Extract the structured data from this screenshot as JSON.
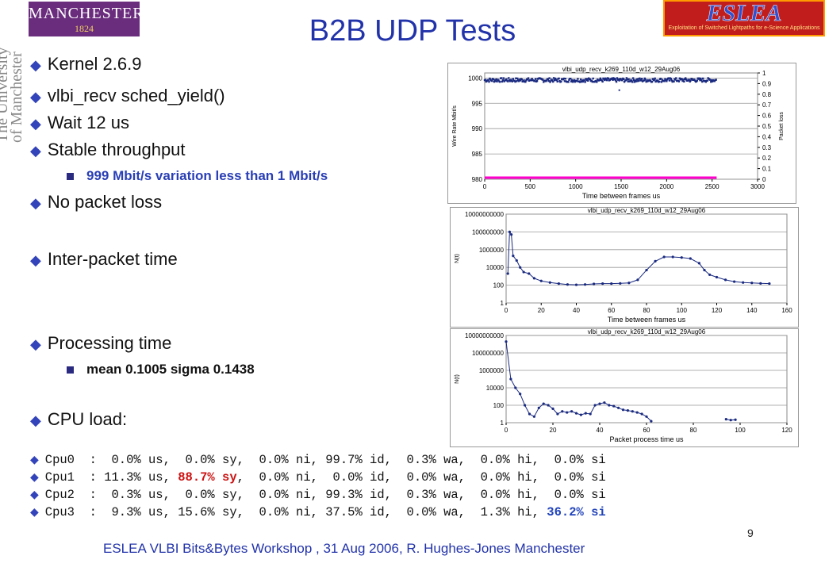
{
  "logos": {
    "manchester_name": "MANCHESTER",
    "manchester_year": "1824",
    "univ_line1": "The University",
    "univ_line2": "of Manchester",
    "eslea_name": "ESLEA",
    "eslea_sub": "Exploitation of Switched Lightpaths for e-Science Applications"
  },
  "slide": {
    "title": "B2B UDP Tests",
    "page_number": "9",
    "footer": "ESLEA VLBI Bits&Bytes Workshop , 31 Aug 2006,  R. Hughes-Jones Manchester",
    "bullet_glyph": "u"
  },
  "bullets": [
    {
      "text": "Kernel 2.6.9"
    },
    {
      "text": "vlbi_recv sched_yield()"
    },
    {
      "text": "Wait 12 us"
    },
    {
      "text": "Stable throughput"
    },
    {
      "text": "No packet loss"
    },
    {
      "text": "Inter-packet time"
    },
    {
      "text": "Processing time"
    },
    {
      "text": "CPU load:"
    }
  ],
  "subbullets": [
    {
      "text": "999 Mbit/s variation less than 1 Mbit/s",
      "color": "#2a3fb5"
    },
    {
      "text": "mean 0.1005 sigma 0.1438",
      "color": "#111111"
    }
  ],
  "cpu": [
    {
      "pre": "Cpu0  :  0.0% us,  0.0% sy,  0.0% ni, 99.7% id,  0.3% wa,  0.0% hi,  0.0% si",
      "red": "",
      "mid": "",
      "blue": ""
    },
    {
      "pre": "Cpu1  : 11.3% us, ",
      "red": "88.7% sy",
      "mid": ",  0.0% ni,  0.0% id,  0.0% wa,  0.0% hi,  0.0% si",
      "blue": ""
    },
    {
      "pre": "Cpu2  :  0.3% us,  0.0% sy,  0.0% ni, 99.3% id,  0.3% wa,  0.0% hi,  0.0% si",
      "red": "",
      "mid": "",
      "blue": ""
    },
    {
      "pre": "Cpu3  :  9.3% us, 15.6% sy,  0.0% ni, 37.5% id,  0.0% wa,  1.3% hi, ",
      "red": "",
      "mid": "",
      "blue": "36.2% si"
    }
  ],
  "chart_data": [
    {
      "type": "scatter",
      "title": "vlbi_udp_recv_k269_110d_w12_29Aug06",
      "xlabel": "Time between frames us",
      "ylabel": "Wire Rate Mbit/s",
      "y2label": "Packet loss",
      "xlim": [
        0,
        3000
      ],
      "xticks": [
        "0",
        "500",
        "1000",
        "1500",
        "2000",
        "2500",
        "3000"
      ],
      "ylim": [
        980,
        1001
      ],
      "yticks": [
        "980",
        "985",
        "990",
        "995",
        "1000"
      ],
      "y2ticks": [
        "0",
        "0.1",
        "0.2",
        "0.3",
        "0.4",
        "0.5",
        "0.6",
        "0.7",
        "0.8",
        "0.9",
        "1"
      ],
      "series": [
        {
          "color": "#1a2a80",
          "x_range": [
            0,
            2550
          ],
          "y_mean": 999.6,
          "y_spread": 0.4
        },
        {
          "color": "#ff00cc",
          "x_range": [
            0,
            2550
          ],
          "y": 0
        }
      ],
      "outliers": [
        {
          "x": 1480,
          "y": 997.6
        }
      ]
    },
    {
      "type": "line",
      "title": "vlbi_udp_recv_k269_110d_w12_29Aug06",
      "xlabel": "Time between frames us",
      "ylabel": "N(t)",
      "log_y": true,
      "xlim": [
        0,
        160
      ],
      "xticks": [
        "0",
        "20",
        "40",
        "60",
        "80",
        "100",
        "120",
        "140",
        "160"
      ],
      "ylim": [
        1,
        10000000000
      ],
      "yticks": [
        "1",
        "100",
        "10000",
        "1000000",
        "100000000",
        "10000000000"
      ],
      "points": [
        [
          1,
          2000
        ],
        [
          2,
          100000000
        ],
        [
          3,
          50000000
        ],
        [
          4,
          200000
        ],
        [
          6,
          60000
        ],
        [
          8,
          10000
        ],
        [
          10,
          3000
        ],
        [
          13,
          2000
        ],
        [
          16,
          600
        ],
        [
          20,
          300
        ],
        [
          25,
          200
        ],
        [
          30,
          150
        ],
        [
          35,
          120
        ],
        [
          40,
          110
        ],
        [
          45,
          120
        ],
        [
          50,
          140
        ],
        [
          55,
          150
        ],
        [
          60,
          150
        ],
        [
          65,
          160
        ],
        [
          70,
          180
        ],
        [
          75,
          400
        ],
        [
          80,
          5000
        ],
        [
          85,
          50000
        ],
        [
          90,
          150000
        ],
        [
          95,
          150000
        ],
        [
          100,
          130000
        ],
        [
          105,
          100000
        ],
        [
          110,
          30000
        ],
        [
          113,
          5000
        ],
        [
          116,
          1500
        ],
        [
          120,
          800
        ],
        [
          125,
          400
        ],
        [
          130,
          250
        ],
        [
          135,
          200
        ],
        [
          140,
          180
        ],
        [
          145,
          160
        ],
        [
          150,
          150
        ]
      ]
    },
    {
      "type": "line",
      "title": "vlbi_udp_recv_k269_110d_w12_29Aug06",
      "xlabel": "Packet process time us",
      "ylabel": "N(t)",
      "log_y": true,
      "xlim": [
        0,
        120
      ],
      "xticks": [
        "0",
        "20",
        "40",
        "60",
        "80",
        "100",
        "120"
      ],
      "ylim": [
        1,
        10000000000
      ],
      "yticks": [
        "1",
        "100",
        "10000",
        "1000000",
        "100000000",
        "10000000000"
      ],
      "points": [
        [
          0,
          2000000000
        ],
        [
          2,
          100000
        ],
        [
          4,
          10000
        ],
        [
          6,
          2000
        ],
        [
          8,
          100
        ],
        [
          10,
          10
        ],
        [
          12,
          5
        ],
        [
          14,
          50
        ],
        [
          16,
          150
        ],
        [
          18,
          100
        ],
        [
          20,
          40
        ],
        [
          22,
          10
        ],
        [
          24,
          20
        ],
        [
          26,
          15
        ],
        [
          28,
          20
        ],
        [
          30,
          12
        ],
        [
          32,
          8
        ],
        [
          34,
          12
        ],
        [
          36,
          10
        ],
        [
          38,
          100
        ],
        [
          40,
          150
        ],
        [
          42,
          200
        ],
        [
          44,
          100
        ],
        [
          46,
          80
        ],
        [
          48,
          50
        ],
        [
          50,
          30
        ],
        [
          52,
          25
        ],
        [
          54,
          20
        ],
        [
          56,
          15
        ],
        [
          58,
          10
        ],
        [
          60,
          5
        ],
        [
          62,
          1.5
        ],
        [
          94,
          2.5
        ],
        [
          96,
          2
        ],
        [
          98,
          2.2
        ]
      ]
    }
  ]
}
